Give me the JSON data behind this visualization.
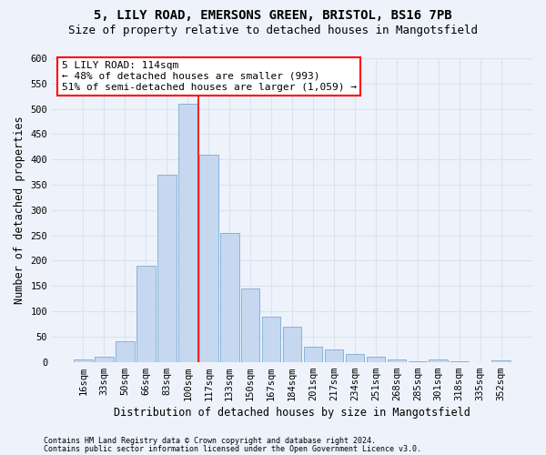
{
  "title1": "5, LILY ROAD, EMERSONS GREEN, BRISTOL, BS16 7PB",
  "title2": "Size of property relative to detached houses in Mangotsfield",
  "xlabel": "Distribution of detached houses by size in Mangotsfield",
  "ylabel": "Number of detached properties",
  "bar_color": "#c5d8f0",
  "bar_edge_color": "#7aadd4",
  "categories": [
    "16sqm",
    "33sqm",
    "50sqm",
    "66sqm",
    "83sqm",
    "100sqm",
    "117sqm",
    "133sqm",
    "150sqm",
    "167sqm",
    "184sqm",
    "201sqm",
    "217sqm",
    "234sqm",
    "251sqm",
    "268sqm",
    "285sqm",
    "301sqm",
    "318sqm",
    "335sqm",
    "352sqm"
  ],
  "values": [
    5,
    10,
    40,
    190,
    370,
    510,
    410,
    255,
    145,
    90,
    70,
    30,
    25,
    15,
    10,
    5,
    2,
    5,
    2,
    0,
    3
  ],
  "vline_x": 5.5,
  "annotation_line1": "5 LILY ROAD: 114sqm",
  "annotation_line2": "← 48% of detached houses are smaller (993)",
  "annotation_line3": "51% of semi-detached houses are larger (1,059) →",
  "ylim": [
    0,
    600
  ],
  "yticks": [
    0,
    50,
    100,
    150,
    200,
    250,
    300,
    350,
    400,
    450,
    500,
    550,
    600
  ],
  "footnote1": "Contains HM Land Registry data © Crown copyright and database right 2024.",
  "footnote2": "Contains public sector information licensed under the Open Government Licence v3.0.",
  "bg_color": "#edf2fb",
  "grid_color": "#d8e4f0",
  "title1_fontsize": 10,
  "title2_fontsize": 9,
  "xlabel_fontsize": 8.5,
  "ylabel_fontsize": 8.5,
  "tick_fontsize": 7.5,
  "annot_fontsize": 8
}
